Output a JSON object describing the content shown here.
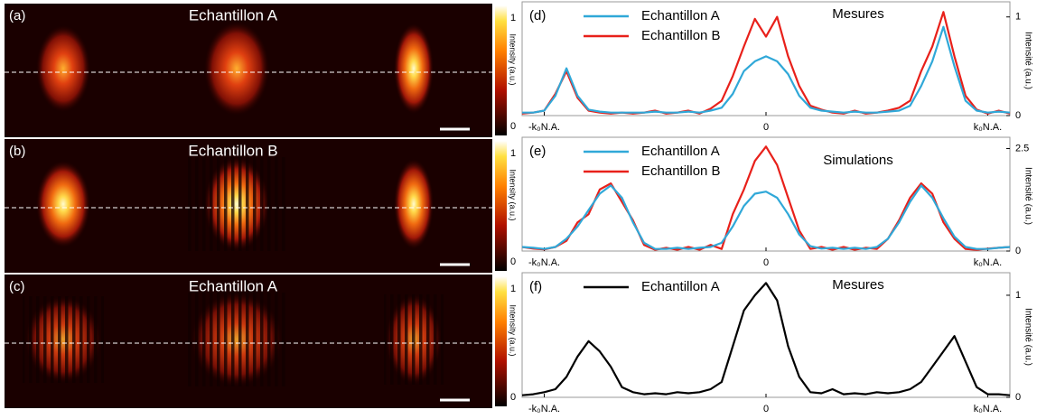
{
  "image_panels": [
    {
      "label": "(a)",
      "title": "Echantillon A",
      "colorbar_label": "Intensity (a.u.)",
      "colorbar_ticks": [
        0,
        1
      ],
      "fringes": false
    },
    {
      "label": "(b)",
      "title": "Echantillon B",
      "colorbar_label": "Intensity (a.u.)",
      "colorbar_ticks": [
        0,
        1
      ],
      "fringes": true
    },
    {
      "label": "(c)",
      "title": "Echantillon A",
      "colorbar_label": "Intensity (a.u.)",
      "colorbar_ticks": [
        0,
        1
      ],
      "fringes": true
    }
  ],
  "chart_data": [
    {
      "type": "line",
      "label": "(d)",
      "annotation": "Mesures",
      "y_label": "Intensité (a.u.)",
      "xlim": [
        -1.1,
        1.1
      ],
      "xticks": [
        {
          "value": -1,
          "label": "-k₀N.A."
        },
        0,
        {
          "value": 1,
          "label": "k₀N.A."
        }
      ],
      "ylim": [
        0,
        1.08
      ],
      "yticks": [
        0,
        1
      ],
      "x": [
        -1.1,
        -1.05,
        -1,
        -0.95,
        -0.9,
        -0.85,
        -0.8,
        -0.75,
        -0.7,
        -0.65,
        -0.6,
        -0.55,
        -0.5,
        -0.45,
        -0.4,
        -0.35,
        -0.3,
        -0.25,
        -0.2,
        -0.15,
        -0.1,
        -0.05,
        0,
        0.05,
        0.1,
        0.15,
        0.2,
        0.25,
        0.3,
        0.35,
        0.4,
        0.45,
        0.5,
        0.55,
        0.6,
        0.65,
        0.7,
        0.75,
        0.8,
        0.85,
        0.9,
        0.95,
        1,
        1.05,
        1.1
      ],
      "series": [
        {
          "name": "Echantillon B",
          "color": "#e8201a",
          "values": [
            0.02,
            0.03,
            0.05,
            0.22,
            0.45,
            0.18,
            0.05,
            0.03,
            0.02,
            0.03,
            0.02,
            0.03,
            0.05,
            0.02,
            0.03,
            0.05,
            0.02,
            0.07,
            0.15,
            0.4,
            0.7,
            0.98,
            0.8,
            1.0,
            0.6,
            0.3,
            0.1,
            0.06,
            0.03,
            0.02,
            0.05,
            0.02,
            0.03,
            0.05,
            0.08,
            0.15,
            0.45,
            0.7,
            1.05,
            0.6,
            0.2,
            0.06,
            0.02,
            0.05,
            0.02
          ]
        },
        {
          "name": "Echantillon A",
          "color": "#30a8d8",
          "values": [
            0.03,
            0.03,
            0.05,
            0.2,
            0.48,
            0.2,
            0.06,
            0.04,
            0.03,
            0.03,
            0.03,
            0.03,
            0.04,
            0.03,
            0.03,
            0.04,
            0.03,
            0.05,
            0.08,
            0.22,
            0.45,
            0.55,
            0.6,
            0.55,
            0.42,
            0.2,
            0.08,
            0.05,
            0.04,
            0.03,
            0.04,
            0.03,
            0.03,
            0.04,
            0.05,
            0.1,
            0.3,
            0.55,
            0.9,
            0.5,
            0.15,
            0.05,
            0.03,
            0.04,
            0.03
          ]
        }
      ]
    },
    {
      "type": "line",
      "label": "(e)",
      "annotation": "Simulations",
      "y_label": "Intensité (a.u.)",
      "xlim": [
        -1.1,
        1.1
      ],
      "xticks": [
        {
          "value": -1,
          "label": "-k₀N.A."
        },
        0,
        {
          "value": 1,
          "label": "k₀N.A."
        }
      ],
      "ylim": [
        0,
        2.6
      ],
      "yticks": [
        0,
        2.5
      ],
      "x": [
        -1.1,
        -1.05,
        -1,
        -0.95,
        -0.9,
        -0.85,
        -0.8,
        -0.75,
        -0.7,
        -0.65,
        -0.6,
        -0.55,
        -0.5,
        -0.45,
        -0.4,
        -0.35,
        -0.3,
        -0.25,
        -0.2,
        -0.15,
        -0.1,
        -0.05,
        0,
        0.05,
        0.1,
        0.15,
        0.2,
        0.25,
        0.3,
        0.35,
        0.4,
        0.45,
        0.5,
        0.55,
        0.6,
        0.65,
        0.7,
        0.75,
        0.8,
        0.85,
        0.9,
        0.95,
        1,
        1.05,
        1.1
      ],
      "series": [
        {
          "name": "Echantillon B",
          "color": "#e8201a",
          "values": [
            0.1,
            0.06,
            0.04,
            0.1,
            0.25,
            0.7,
            0.9,
            1.5,
            1.65,
            1.2,
            0.75,
            0.15,
            0.03,
            0.08,
            0.03,
            0.1,
            0.03,
            0.15,
            0.05,
            0.9,
            1.5,
            2.2,
            2.55,
            2.1,
            1.3,
            0.5,
            0.05,
            0.1,
            0.03,
            0.1,
            0.03,
            0.08,
            0.05,
            0.3,
            0.75,
            1.3,
            1.65,
            1.4,
            0.7,
            0.3,
            0.05,
            0.03,
            0.06,
            0.08,
            0.1
          ]
        },
        {
          "name": "Echantillon A",
          "color": "#30a8d8",
          "values": [
            0.1,
            0.08,
            0.05,
            0.1,
            0.3,
            0.6,
            1.0,
            1.4,
            1.6,
            1.3,
            0.7,
            0.2,
            0.05,
            0.05,
            0.08,
            0.05,
            0.08,
            0.1,
            0.2,
            0.6,
            1.1,
            1.4,
            1.45,
            1.3,
            0.9,
            0.4,
            0.12,
            0.06,
            0.08,
            0.05,
            0.08,
            0.05,
            0.1,
            0.3,
            0.7,
            1.2,
            1.6,
            1.3,
            0.8,
            0.35,
            0.1,
            0.05,
            0.05,
            0.08,
            0.1
          ]
        }
      ]
    },
    {
      "type": "line",
      "label": "(f)",
      "annotation": "Mesures",
      "y_label": "Intensité (a.u.)",
      "xlim": [
        -1.1,
        1.1
      ],
      "xticks": [
        {
          "value": -1,
          "label": "-k₀N.A."
        },
        0,
        {
          "value": 1,
          "label": "k₀N.A."
        }
      ],
      "ylim": [
        0,
        1.15
      ],
      "yticks": [
        0,
        1
      ],
      "x": [
        -1.1,
        -1.05,
        -1,
        -0.95,
        -0.9,
        -0.85,
        -0.8,
        -0.75,
        -0.7,
        -0.65,
        -0.6,
        -0.55,
        -0.5,
        -0.45,
        -0.4,
        -0.35,
        -0.3,
        -0.25,
        -0.2,
        -0.15,
        -0.1,
        -0.05,
        0,
        0.05,
        0.1,
        0.15,
        0.2,
        0.25,
        0.3,
        0.35,
        0.4,
        0.45,
        0.5,
        0.55,
        0.6,
        0.65,
        0.7,
        0.75,
        0.8,
        0.85,
        0.9,
        0.95,
        1,
        1.05,
        1.1
      ],
      "series": [
        {
          "name": "Echantillon A",
          "color": "#000000",
          "values": [
            0.02,
            0.03,
            0.05,
            0.08,
            0.2,
            0.4,
            0.55,
            0.45,
            0.3,
            0.1,
            0.05,
            0.03,
            0.04,
            0.03,
            0.05,
            0.04,
            0.05,
            0.08,
            0.15,
            0.5,
            0.85,
            1.0,
            1.12,
            0.95,
            0.5,
            0.2,
            0.05,
            0.04,
            0.08,
            0.03,
            0.04,
            0.03,
            0.05,
            0.04,
            0.05,
            0.08,
            0.15,
            0.3,
            0.45,
            0.6,
            0.35,
            0.1,
            0.03,
            0.03,
            0.02
          ]
        }
      ]
    }
  ]
}
